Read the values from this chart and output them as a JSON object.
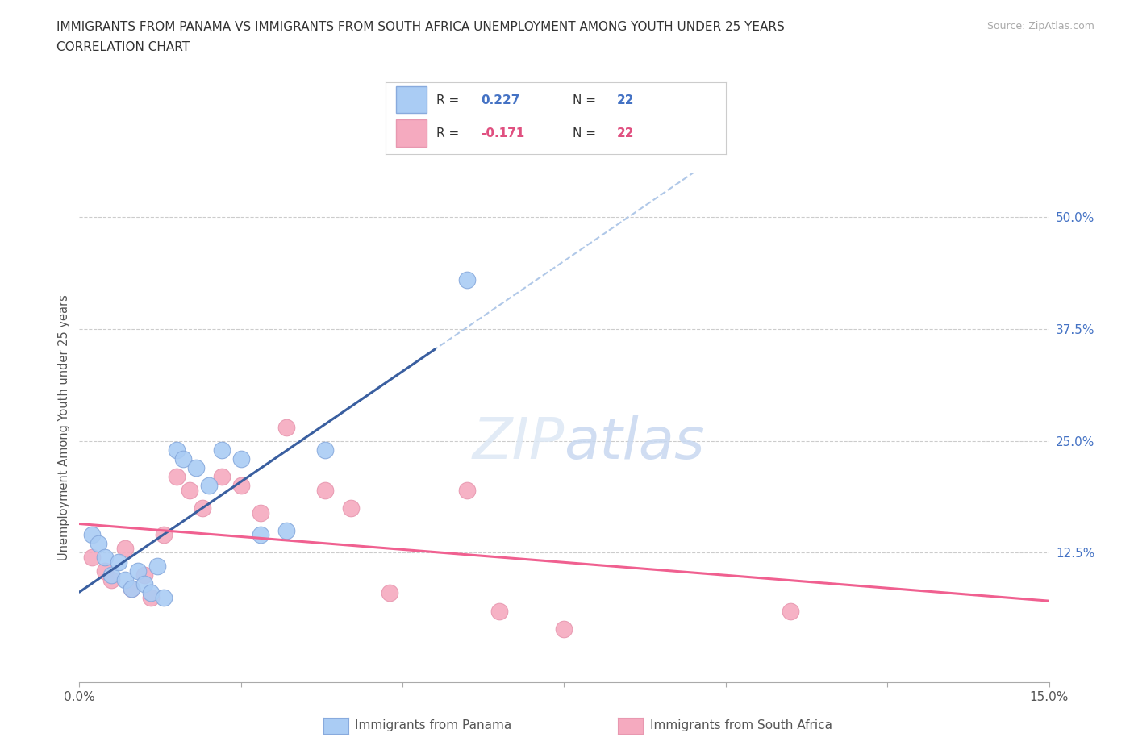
{
  "title_line1": "IMMIGRANTS FROM PANAMA VS IMMIGRANTS FROM SOUTH AFRICA UNEMPLOYMENT AMONG YOUTH UNDER 25 YEARS",
  "title_line2": "CORRELATION CHART",
  "source": "Source: ZipAtlas.com",
  "ylabel": "Unemployment Among Youth under 25 years",
  "xlim": [
    0.0,
    0.15
  ],
  "ylim": [
    -0.02,
    0.55
  ],
  "y_ticks_right": [
    0.125,
    0.25,
    0.375,
    0.5
  ],
  "r_panama": 0.227,
  "n_panama": 22,
  "r_south_africa": -0.171,
  "n_south_africa": 22,
  "panama_color": "#aaccf4",
  "south_africa_color": "#f5aabf",
  "panama_line_color": "#3a5fa0",
  "south_africa_line_color": "#f06090",
  "panama_dash_color": "#b0c8e8",
  "watermark": "ZIPatlas",
  "legend_r_panama_color": "#4472c4",
  "legend_r_sa_color": "#e05080",
  "panama_scatter_x": [
    0.002,
    0.003,
    0.004,
    0.005,
    0.006,
    0.007,
    0.008,
    0.009,
    0.01,
    0.011,
    0.012,
    0.013,
    0.015,
    0.016,
    0.018,
    0.02,
    0.022,
    0.025,
    0.028,
    0.032,
    0.038,
    0.06
  ],
  "panama_scatter_y": [
    0.145,
    0.135,
    0.12,
    0.1,
    0.115,
    0.095,
    0.085,
    0.105,
    0.09,
    0.08,
    0.11,
    0.075,
    0.24,
    0.23,
    0.22,
    0.2,
    0.24,
    0.23,
    0.145,
    0.15,
    0.24,
    0.43
  ],
  "sa_scatter_x": [
    0.002,
    0.004,
    0.005,
    0.007,
    0.008,
    0.01,
    0.011,
    0.013,
    0.015,
    0.017,
    0.019,
    0.022,
    0.025,
    0.028,
    0.032,
    0.038,
    0.042,
    0.048,
    0.06,
    0.065,
    0.075,
    0.11
  ],
  "sa_scatter_y": [
    0.12,
    0.105,
    0.095,
    0.13,
    0.085,
    0.1,
    0.075,
    0.145,
    0.21,
    0.195,
    0.175,
    0.21,
    0.2,
    0.17,
    0.265,
    0.195,
    0.175,
    0.08,
    0.195,
    0.06,
    0.04,
    0.06
  ],
  "panama_line_xrange": [
    0.0,
    0.055
  ],
  "panama_dash_xrange": [
    0.0,
    0.15
  ]
}
